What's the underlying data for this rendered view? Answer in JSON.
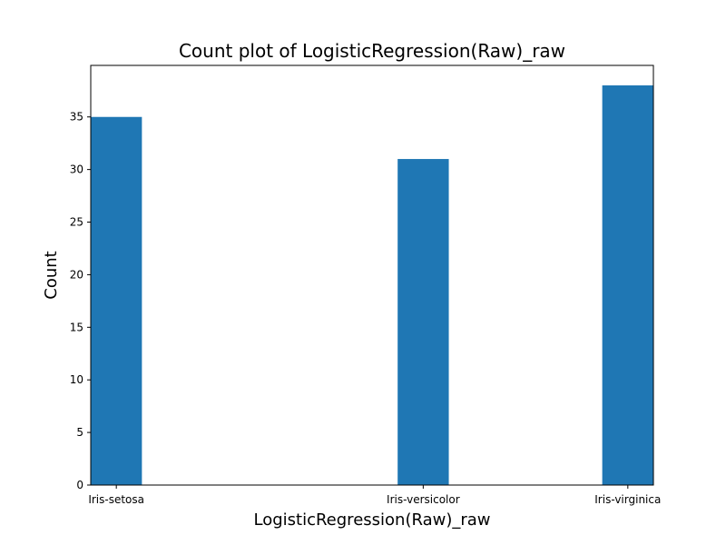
{
  "chart_data": {
    "type": "bar",
    "title": "Count plot of LogisticRegression(Raw)_raw",
    "xlabel": "LogisticRegression(Raw)_raw",
    "ylabel": "Count",
    "categories": [
      "Iris-setosa",
      "Iris-versicolor",
      "Iris-virginica"
    ],
    "x_positions": [
      0,
      1.2,
      2.0
    ],
    "xlim": [
      -0.1,
      2.1
    ],
    "values": [
      35,
      31,
      38
    ],
    "ylim": [
      0,
      39.9
    ],
    "yticks": [
      0,
      5,
      10,
      15,
      20,
      25,
      30,
      35
    ],
    "bar_color": "#1f77b4",
    "grid": false,
    "legend": "none"
  }
}
